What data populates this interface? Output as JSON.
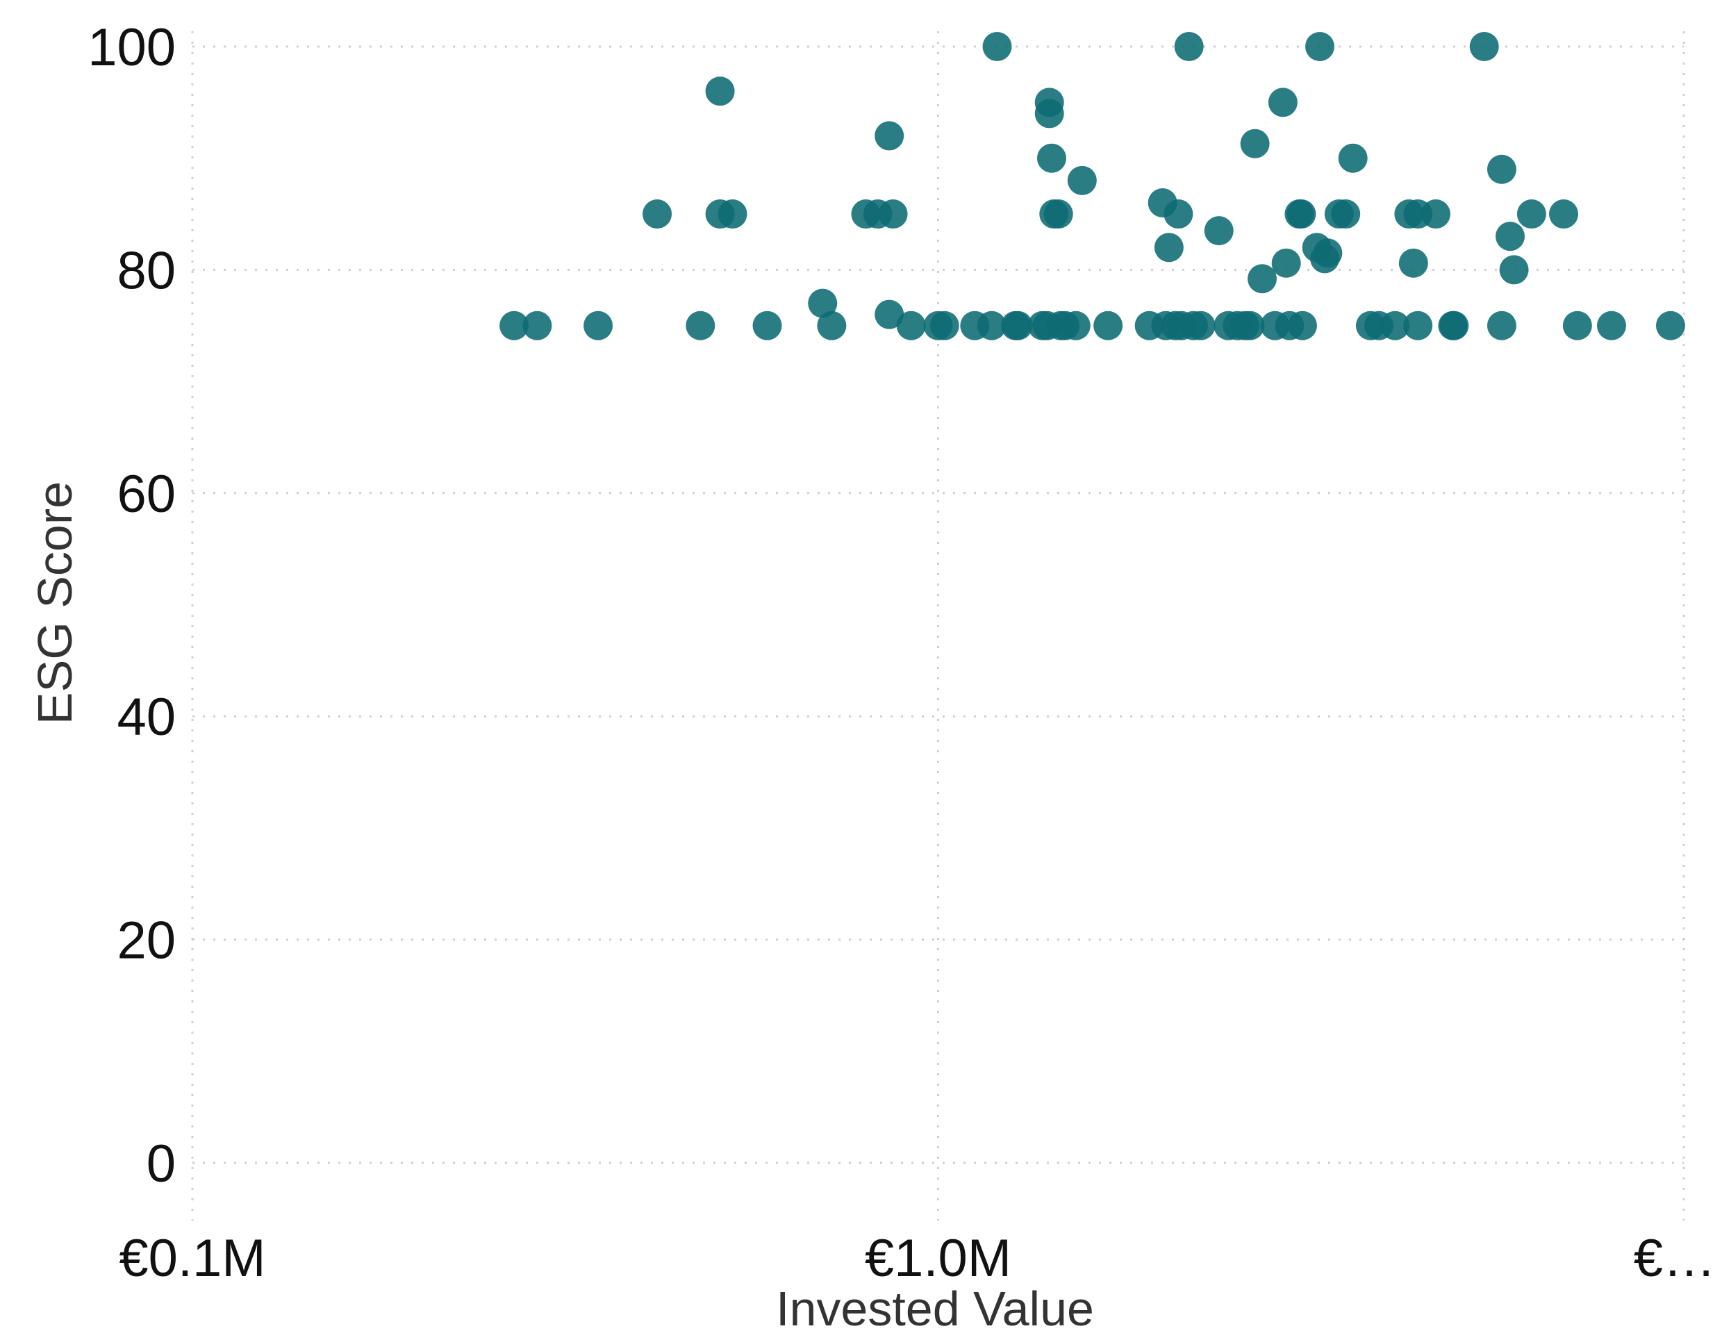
{
  "chart_data": {
    "type": "scatter",
    "title": "",
    "xlabel": "Invested Value",
    "ylabel": "ESG Score",
    "x_scale": "log",
    "x_unit": "EUR millions",
    "xlim": [
      0.1,
      10
    ],
    "ylim": [
      -5,
      103
    ],
    "x_ticks": [
      {
        "value": 0.1,
        "label": "€0.1M"
      },
      {
        "value": 1.0,
        "label": "€1.0M"
      },
      {
        "value": 10,
        "label": "€…"
      }
    ],
    "y_ticks": [
      {
        "value": 0,
        "label": "0"
      },
      {
        "value": 20,
        "label": "20"
      },
      {
        "value": 40,
        "label": "40"
      },
      {
        "value": 60,
        "label": "60"
      },
      {
        "value": 80,
        "label": "80"
      },
      {
        "value": 100,
        "label": "100"
      }
    ],
    "grid": true,
    "color": "#0e6b73",
    "points": [
      {
        "x": 0.27,
        "y": 75
      },
      {
        "x": 0.29,
        "y": 75
      },
      {
        "x": 0.35,
        "y": 75
      },
      {
        "x": 0.48,
        "y": 75
      },
      {
        "x": 0.59,
        "y": 75
      },
      {
        "x": 0.72,
        "y": 75
      },
      {
        "x": 0.42,
        "y": 85
      },
      {
        "x": 0.51,
        "y": 85
      },
      {
        "x": 0.53,
        "y": 85
      },
      {
        "x": 0.51,
        "y": 96
      },
      {
        "x": 0.7,
        "y": 77
      },
      {
        "x": 0.8,
        "y": 85
      },
      {
        "x": 0.83,
        "y": 85
      },
      {
        "x": 0.87,
        "y": 85
      },
      {
        "x": 0.86,
        "y": 92
      },
      {
        "x": 0.86,
        "y": 76
      },
      {
        "x": 0.92,
        "y": 75
      },
      {
        "x": 1.0,
        "y": 75
      },
      {
        "x": 1.02,
        "y": 75
      },
      {
        "x": 1.12,
        "y": 75
      },
      {
        "x": 1.18,
        "y": 75
      },
      {
        "x": 1.2,
        "y": 100
      },
      {
        "x": 1.27,
        "y": 75
      },
      {
        "x": 1.28,
        "y": 75
      },
      {
        "x": 1.38,
        "y": 75
      },
      {
        "x": 1.4,
        "y": 75
      },
      {
        "x": 1.41,
        "y": 95
      },
      {
        "x": 1.41,
        "y": 94
      },
      {
        "x": 1.42,
        "y": 90
      },
      {
        "x": 1.43,
        "y": 85
      },
      {
        "x": 1.45,
        "y": 85
      },
      {
        "x": 1.46,
        "y": 75
      },
      {
        "x": 1.48,
        "y": 75
      },
      {
        "x": 1.53,
        "y": 75
      },
      {
        "x": 1.56,
        "y": 88
      },
      {
        "x": 1.69,
        "y": 75
      },
      {
        "x": 1.92,
        "y": 75
      },
      {
        "x": 2.0,
        "y": 86
      },
      {
        "x": 2.02,
        "y": 75
      },
      {
        "x": 2.04,
        "y": 82
      },
      {
        "x": 2.08,
        "y": 75
      },
      {
        "x": 2.12,
        "y": 75
      },
      {
        "x": 2.1,
        "y": 85
      },
      {
        "x": 2.17,
        "y": 100
      },
      {
        "x": 2.2,
        "y": 75
      },
      {
        "x": 2.25,
        "y": 75
      },
      {
        "x": 2.38,
        "y": 83.5
      },
      {
        "x": 2.45,
        "y": 75
      },
      {
        "x": 2.52,
        "y": 75
      },
      {
        "x": 2.58,
        "y": 75
      },
      {
        "x": 2.62,
        "y": 75
      },
      {
        "x": 2.66,
        "y": 91.3
      },
      {
        "x": 2.72,
        "y": 79.2
      },
      {
        "x": 2.83,
        "y": 75
      },
      {
        "x": 2.9,
        "y": 95
      },
      {
        "x": 2.93,
        "y": 80.6
      },
      {
        "x": 2.96,
        "y": 75
      },
      {
        "x": 3.05,
        "y": 85
      },
      {
        "x": 3.07,
        "y": 85
      },
      {
        "x": 3.08,
        "y": 75
      },
      {
        "x": 3.22,
        "y": 82
      },
      {
        "x": 3.25,
        "y": 100
      },
      {
        "x": 3.3,
        "y": 81
      },
      {
        "x": 3.33,
        "y": 81.5
      },
      {
        "x": 3.45,
        "y": 85
      },
      {
        "x": 3.52,
        "y": 85
      },
      {
        "x": 3.6,
        "y": 90
      },
      {
        "x": 3.8,
        "y": 75
      },
      {
        "x": 3.9,
        "y": 75
      },
      {
        "x": 4.1,
        "y": 75
      },
      {
        "x": 4.28,
        "y": 85
      },
      {
        "x": 4.34,
        "y": 80.6
      },
      {
        "x": 4.4,
        "y": 85
      },
      {
        "x": 4.4,
        "y": 75
      },
      {
        "x": 4.65,
        "y": 85
      },
      {
        "x": 4.9,
        "y": 75
      },
      {
        "x": 4.92,
        "y": 75
      },
      {
        "x": 5.4,
        "y": 100
      },
      {
        "x": 5.7,
        "y": 89
      },
      {
        "x": 5.7,
        "y": 75
      },
      {
        "x": 5.85,
        "y": 83
      },
      {
        "x": 5.92,
        "y": 80
      },
      {
        "x": 6.25,
        "y": 85
      },
      {
        "x": 6.9,
        "y": 85
      },
      {
        "x": 7.2,
        "y": 75
      },
      {
        "x": 8.0,
        "y": 75
      },
      {
        "x": 9.6,
        "y": 75
      }
    ]
  }
}
